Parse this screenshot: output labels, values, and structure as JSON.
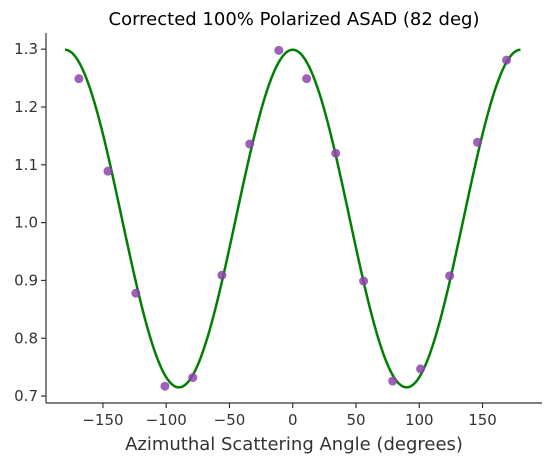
{
  "chart_data": {
    "type": "scatter",
    "title": "Corrected 100% Polarized ASAD (82 deg)",
    "xlabel": "Azimuthal Scattering Angle (degrees)",
    "ylabel": "",
    "xlim": [
      -195,
      197
    ],
    "ylim": [
      0.688,
      1.328
    ],
    "xticks": [
      -150,
      -100,
      -50,
      0,
      50,
      100,
      150
    ],
    "xtick_labels": [
      "−150",
      "−100",
      "−50",
      "0",
      "50",
      "100",
      "150"
    ],
    "yticks": [
      0.7,
      0.8,
      0.9,
      1.0,
      1.1,
      1.2,
      1.3
    ],
    "ytick_labels": [
      "0.7",
      "0.8",
      "0.9",
      "1.0",
      "1.1",
      "1.2",
      "1.3"
    ],
    "grid": false,
    "legend": "none",
    "series": [
      {
        "kind": "scatter",
        "color": "#8e44ad",
        "points": [
          {
            "x": -169,
            "y": 1.249
          },
          {
            "x": -146,
            "y": 1.089
          },
          {
            "x": -124,
            "y": 0.878
          },
          {
            "x": -101,
            "y": 0.717
          },
          {
            "x": -79,
            "y": 0.732
          },
          {
            "x": -56,
            "y": 0.909
          },
          {
            "x": -34,
            "y": 1.136
          },
          {
            "x": -11,
            "y": 1.298
          },
          {
            "x": 11,
            "y": 1.249
          },
          {
            "x": 34,
            "y": 1.12
          },
          {
            "x": 56,
            "y": 0.899
          },
          {
            "x": 79,
            "y": 0.726
          },
          {
            "x": 101,
            "y": 0.747
          },
          {
            "x": 124,
            "y": 0.908
          },
          {
            "x": 146,
            "y": 1.139
          },
          {
            "x": 169,
            "y": 1.281
          }
        ]
      },
      {
        "kind": "line",
        "color": "#008000",
        "model": {
          "form": "offset + amplitude * cos(2 * (x - phase))",
          "offset": 1.007,
          "amplitude": 0.292,
          "phase": 0,
          "x_range": [
            -180,
            180
          ]
        }
      }
    ]
  }
}
